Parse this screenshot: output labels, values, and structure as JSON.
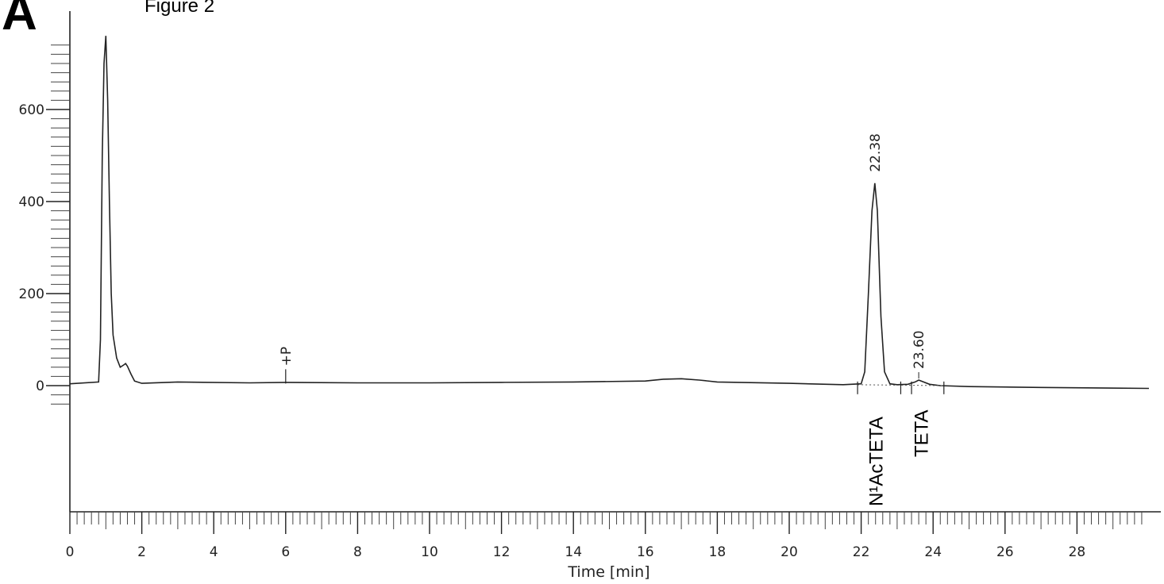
{
  "figure": {
    "panel_letter": "A",
    "title": "Figure 2"
  },
  "chart_data": {
    "type": "line",
    "title": "Figure 2",
    "xlabel": "Time [min]",
    "ylabel": "",
    "xlim": [
      0,
      30
    ],
    "ylim": [
      -280,
      760
    ],
    "x_ticks": [
      0,
      2,
      4,
      6,
      8,
      10,
      12,
      14,
      16,
      18,
      20,
      22,
      24,
      26,
      28
    ],
    "y_ticks": [
      0,
      200,
      400,
      600
    ],
    "grid": false,
    "series": [
      {
        "x": [
          0.0,
          0.8,
          0.85,
          0.9,
          0.95,
          1.0,
          1.05,
          1.1,
          1.15,
          1.2,
          1.3,
          1.4,
          1.5,
          1.55,
          1.6,
          1.7,
          1.8,
          2.0,
          3.0,
          5.0,
          6.0,
          8.0,
          10.0,
          12.0,
          14.0,
          16.0,
          16.5,
          17.0,
          17.5,
          18.0,
          20.0,
          21.5,
          22.0,
          22.1,
          22.2,
          22.3,
          22.38,
          22.45,
          22.55,
          22.65,
          22.8,
          23.0,
          23.3,
          23.5,
          23.6,
          23.7,
          23.9,
          24.2,
          25.0,
          27.0,
          30.0
        ],
        "y": [
          4,
          8,
          100,
          500,
          700,
          760,
          620,
          400,
          200,
          110,
          60,
          40,
          45,
          48,
          42,
          25,
          10,
          5,
          8,
          6,
          7,
          6,
          6,
          7,
          8,
          10,
          14,
          15,
          12,
          8,
          5,
          2,
          4,
          30,
          200,
          380,
          440,
          380,
          150,
          30,
          4,
          2,
          3,
          8,
          12,
          9,
          3,
          0,
          -2,
          -4,
          -6
        ]
      }
    ],
    "peak_labels": [
      {
        "time": "22.38",
        "x": 22.38,
        "y": 440
      },
      {
        "time": "23.60",
        "x": 23.6,
        "y": 12
      }
    ],
    "event_marker": {
      "label": "+P",
      "x": 6.0
    },
    "compound_labels": [
      {
        "text": "N¹AcTETA",
        "x": 22.4
      },
      {
        "text": "TETA",
        "x": 23.65
      }
    ],
    "integration_bounds": [
      21.9,
      23.1,
      23.4,
      24.3
    ]
  }
}
